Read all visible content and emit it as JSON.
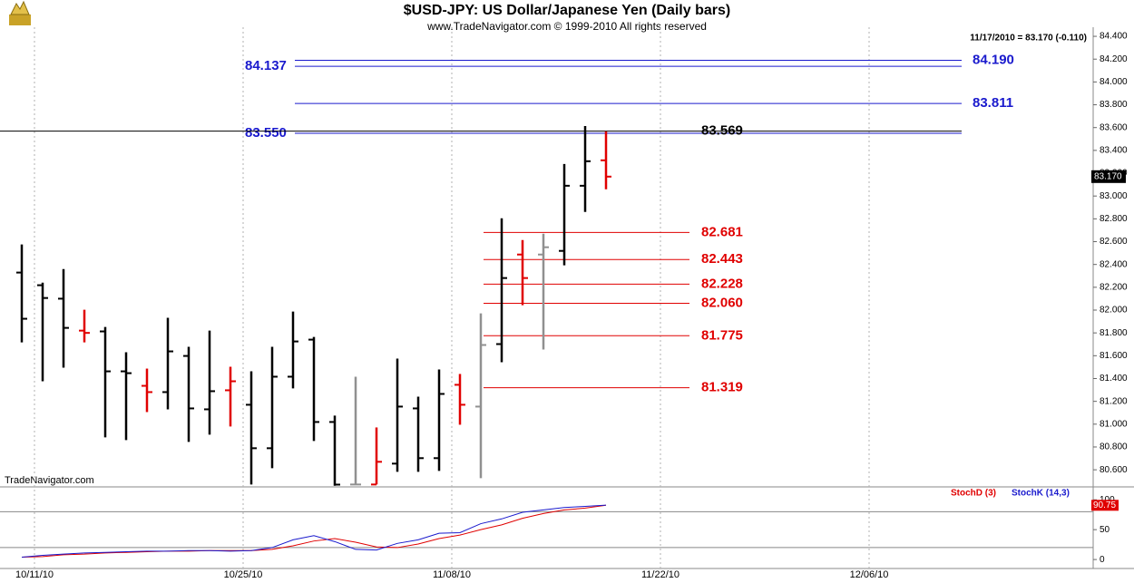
{
  "chart_data": [
    {
      "type": "ohlc",
      "title": "$USD-JPY:  US Dollar/Japanese Yen  (Daily bars)",
      "subtitle": "www.TradeNavigator.com © 1999-2010 All rights reserved",
      "info": "11/17/2010 = 83.170 (-0.110)",
      "watermark": "TradeNavigator.com",
      "x": [
        "10/08/10",
        "10/11/10",
        "10/12/10",
        "10/13/10",
        "10/14/10",
        "10/15/10",
        "10/18/10",
        "10/19/10",
        "10/20/10",
        "10/21/10",
        "10/22/10",
        "10/25/10",
        "10/26/10",
        "10/27/10",
        "10/28/10",
        "10/29/10",
        "11/01/10",
        "11/02/10",
        "11/03/10",
        "11/04/10",
        "11/05/10",
        "11/08/10",
        "11/09/10",
        "11/10/10",
        "11/11/10",
        "11/12/10",
        "11/15/10",
        "11/16/10",
        "11/17/10"
      ],
      "open": [
        82.329,
        82.218,
        82.1,
        81.82,
        81.813,
        81.463,
        81.336,
        81.281,
        81.598,
        81.13,
        81.297,
        81.17,
        80.789,
        81.416,
        81.741,
        81.019,
        80.471,
        80.471,
        80.654,
        81.138,
        80.702,
        81.345,
        81.154,
        81.702,
        82.487,
        82.487,
        82.519,
        83.09,
        83.313
      ],
      "high": [
        82.575,
        82.24,
        82.36,
        82.003,
        81.852,
        81.63,
        81.487,
        81.932,
        81.678,
        81.82,
        81.503,
        81.463,
        81.678,
        81.987,
        81.765,
        81.075,
        81.416,
        80.971,
        81.575,
        81.241,
        81.479,
        81.44,
        81.971,
        82.805,
        82.614,
        82.67,
        83.281,
        83.614,
        83.567
      ],
      "low": [
        81.717,
        81.376,
        81.495,
        81.717,
        80.884,
        80.86,
        81.106,
        81.13,
        80.844,
        80.908,
        80.98,
        80.471,
        80.614,
        81.313,
        80.852,
        80.46,
        80.471,
        80.471,
        80.582,
        80.582,
        80.59,
        80.995,
        80.527,
        81.543,
        82.043,
        81.654,
        82.392,
        82.86,
        83.059
      ],
      "close": [
        81.924,
        82.106,
        81.844,
        81.8,
        81.463,
        81.447,
        81.281,
        81.638,
        81.138,
        81.289,
        81.376,
        80.789,
        81.416,
        81.725,
        81.019,
        80.47,
        80.471,
        80.67,
        81.154,
        80.702,
        81.265,
        81.17,
        81.694,
        82.281,
        82.281,
        82.551,
        83.09,
        83.305,
        83.17
      ],
      "bar_colors": [
        "#000000",
        "#000000",
        "#000000",
        "#e00000",
        "#000000",
        "#000000",
        "#e00000",
        "#000000",
        "#000000",
        "#000000",
        "#e00000",
        "#000000",
        "#000000",
        "#000000",
        "#000000",
        "#000000",
        "#909090",
        "#e00000",
        "#000000",
        "#000000",
        "#000000",
        "#e00000",
        "#909090",
        "#000000",
        "#e00000",
        "#909090",
        "#000000",
        "#000000",
        "#e00000"
      ],
      "last_price": {
        "value": 83.17,
        "label": "83.170"
      },
      "levels": [
        {
          "value": 84.19,
          "label": "84.190",
          "color": "#1a1acd"
        },
        {
          "value": 84.137,
          "label": "84.137",
          "color": "#1a1acd"
        },
        {
          "value": 83.811,
          "label": "83.811",
          "color": "#1a1acd"
        },
        {
          "value": 83.55,
          "label": "83.550",
          "color": "#1a1acd"
        },
        {
          "value": 83.569,
          "label": "83.569",
          "color": "#000000"
        },
        {
          "value": 82.681,
          "label": "82.681",
          "color": "#e00000"
        },
        {
          "value": 82.443,
          "label": "82.443",
          "color": "#e00000"
        },
        {
          "value": 82.228,
          "label": "82.228",
          "color": "#e00000"
        },
        {
          "value": 82.06,
          "label": "82.060",
          "color": "#e00000"
        },
        {
          "value": 81.775,
          "label": "81.775",
          "color": "#e00000"
        },
        {
          "value": 81.319,
          "label": "81.319",
          "color": "#e00000"
        }
      ],
      "xlim": [
        "10/07/10",
        "12/20/10"
      ],
      "ylim": [
        80.45,
        84.48
      ],
      "yticks": [
        {
          "value": 80.6,
          "label": "80.600"
        },
        {
          "value": 80.8,
          "label": "80.800"
        },
        {
          "value": 81.0,
          "label": "81.000"
        },
        {
          "value": 81.2,
          "label": "81.200"
        },
        {
          "value": 81.4,
          "label": "81.400"
        },
        {
          "value": 81.6,
          "label": "81.600"
        },
        {
          "value": 81.8,
          "label": "81.800"
        },
        {
          "value": 82.0,
          "label": "82.000"
        },
        {
          "value": 82.2,
          "label": "82.200"
        },
        {
          "value": 82.4,
          "label": "82.400"
        },
        {
          "value": 82.6,
          "label": "82.600"
        },
        {
          "value": 82.8,
          "label": "82.800"
        },
        {
          "value": 83.0,
          "label": "83.000"
        },
        {
          "value": 83.2,
          "label": "83.200"
        },
        {
          "value": 83.4,
          "label": "83.400"
        },
        {
          "value": 83.6,
          "label": "83.600"
        },
        {
          "value": 83.8,
          "label": "83.800"
        },
        {
          "value": 84.0,
          "label": "84.000"
        },
        {
          "value": 84.2,
          "label": "84.200"
        },
        {
          "value": 84.4,
          "label": "84.400"
        }
      ]
    },
    {
      "type": "line",
      "x": [
        "10/08/10",
        "10/11/10",
        "10/12/10",
        "10/13/10",
        "10/14/10",
        "10/15/10",
        "10/18/10",
        "10/19/10",
        "10/20/10",
        "10/21/10",
        "10/22/10",
        "10/25/10",
        "10/26/10",
        "10/27/10",
        "10/28/10",
        "10/29/10",
        "11/01/10",
        "11/02/10",
        "11/03/10",
        "11/04/10",
        "11/05/10",
        "11/08/10",
        "11/09/10",
        "11/10/10",
        "11/11/10",
        "11/12/10",
        "11/15/10",
        "11/16/10",
        "11/17/10"
      ],
      "series": [
        {
          "name": "StochD (3)",
          "color": "#e00000",
          "values": [
            4,
            5,
            8,
            9,
            11,
            12,
            13,
            14,
            14,
            15,
            15,
            15,
            17,
            23,
            31,
            35,
            29,
            21,
            20,
            26,
            35,
            41,
            50,
            58,
            69,
            77,
            83,
            86,
            90.75
          ]
        },
        {
          "name": "StochK (14,3)",
          "color": "#1a1acd",
          "values": [
            4,
            7,
            9,
            11,
            12,
            13,
            14,
            14,
            15,
            15,
            14,
            15,
            20,
            33,
            40,
            30,
            17,
            16,
            27,
            33,
            44,
            45,
            60,
            68,
            79,
            83,
            87,
            89,
            91
          ]
        }
      ],
      "last_value": 90.75,
      "levels": [
        20,
        80
      ],
      "xlim": [
        "10/07/10",
        "12/20/10"
      ],
      "xticks": [
        "10/11/10",
        "10/25/10",
        "11/08/10",
        "11/22/10",
        "12/06/10"
      ],
      "ylim": [
        -15,
        117
      ],
      "yticks": [
        0,
        50,
        100
      ]
    }
  ]
}
